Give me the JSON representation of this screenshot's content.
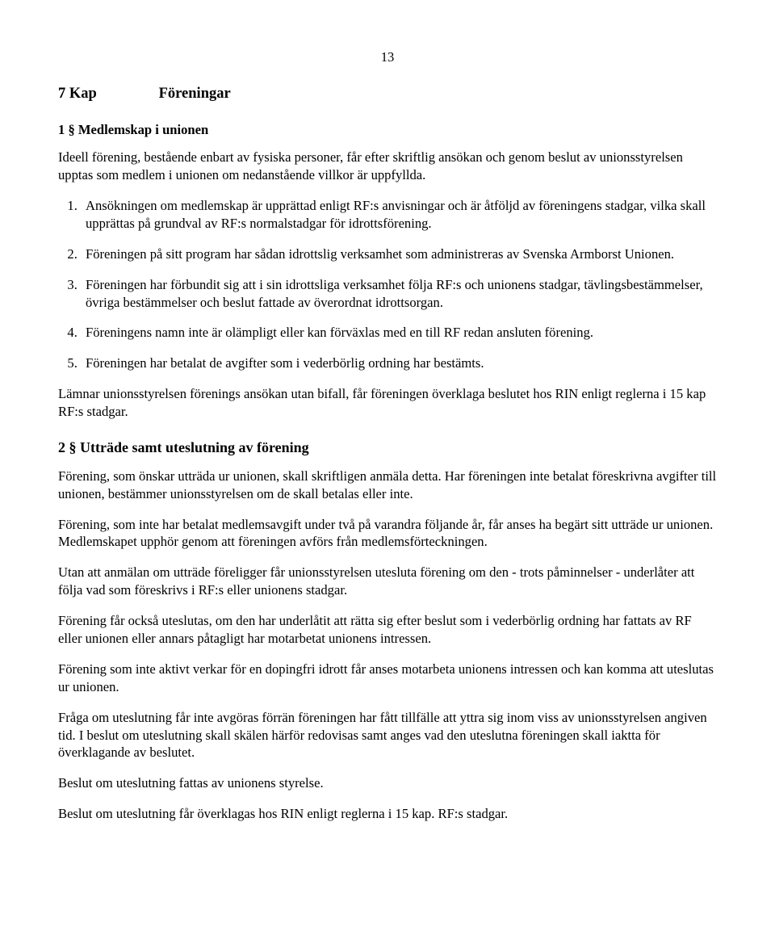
{
  "page_number": "13",
  "chapter": {
    "num": "7 Kap",
    "title": "Föreningar"
  },
  "section1": {
    "heading": "1 §   Medlemskap i unionen",
    "intro": "Ideell förening, bestående enbart av fysiska personer, får efter skriftlig ansökan och genom beslut av unionsstyrelsen upptas som medlem i unionen om nedanstående villkor är uppfyllda.",
    "items": [
      "Ansökningen om medlemskap är upprättad enligt RF:s anvisningar och är åtföljd av föreningens stadgar, vilka skall upprättas på grundval av RF:s normalstadgar för idrottsförening.",
      "Föreningen på sitt program har sådan idrottslig verksamhet som administreras av Svenska Armborst Unionen.",
      "Föreningen har förbundit sig att i sin idrottsliga verksamhet följa RF:s och unionens stadgar, tävlingsbestämmelser, övriga bestämmelser och beslut fattade av överordnat idrottsorgan.",
      "Föreningens namn inte är olämpligt eller kan förväxlas med en till RF redan ansluten förening.",
      "Föreningen har betalat de avgifter som i vederbörlig ordning har bestämts."
    ],
    "after": "Lämnar unionsstyrelsen förenings ansökan utan bifall, får föreningen överklaga beslutet hos RIN enligt reglerna i 15 kap RF:s stadgar."
  },
  "section2": {
    "heading": "2 §   Utträde samt uteslutning av förening",
    "paras": [
      "Förening, som önskar utträda ur unionen, skall skriftligen anmäla detta. Har föreningen inte betalat föreskrivna avgifter till unionen, bestämmer unionsstyrelsen om de skall betalas eller inte.",
      "Förening, som inte har betalat medlemsavgift under två på varandra följande år, får anses ha begärt sitt utträde ur unionen. Medlemskapet upphör genom att föreningen avförs från medlemsförteckningen.",
      "Utan att anmälan om utträde föreligger får unionsstyrelsen utesluta förening om den - trots påminnelser - underlåter att följa vad som föreskrivs i RF:s eller unionens stadgar.",
      "Förening får också uteslutas, om den har underlåtit att rätta sig efter beslut som i vederbörlig ordning har fattats av RF eller unionen eller annars påtagligt har motarbetat unionens intressen.",
      "Förening som inte aktivt verkar för en dopingfri idrott får anses motarbeta unionens intressen och kan komma att uteslutas ur unionen.",
      "Fråga om uteslutning får inte avgöras förrän föreningen har fått tillfälle att yttra sig inom viss av unionsstyrelsen angiven tid. I beslut om uteslutning skall skälen härför redovisas samt anges vad den uteslutna föreningen skall iaktta för överklagande av beslutet.",
      "Beslut om uteslutning fattas av unionens styrelse.",
      "Beslut om uteslutning får överklagas hos RIN enligt reglerna i 15 kap. RF:s stadgar."
    ]
  }
}
